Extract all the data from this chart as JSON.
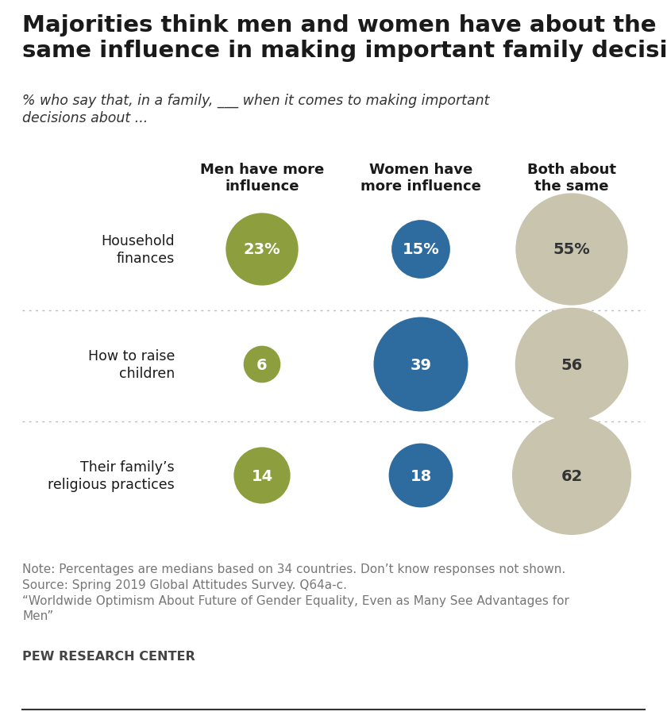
{
  "title": "Majorities think men and women have about the\nsame influence in making important family decisions",
  "subtitle": "% who say that, in a family, ___ when it comes to making important\ndecisions about ...",
  "col_headers": [
    "Men have more\ninfluence",
    "Women have\nmore influence",
    "Both about\nthe same"
  ],
  "row_labels": [
    "Household\nfinances",
    "How to raise\nchildren",
    "Their family’s\nreligious practices"
  ],
  "values": [
    [
      23,
      15,
      55
    ],
    [
      6,
      39,
      56
    ],
    [
      14,
      18,
      62
    ]
  ],
  "value_labels": [
    [
      "23%",
      "15%",
      "55%"
    ],
    [
      "6",
      "39",
      "56"
    ],
    [
      "14",
      "18",
      "62"
    ]
  ],
  "label_colors": [
    [
      "white",
      "white",
      "#333333"
    ],
    [
      "white",
      "white",
      "#333333"
    ],
    [
      "white",
      "white",
      "#333333"
    ]
  ],
  "colors": [
    "#8c9e3e",
    "#2e6b9e",
    "#c8c4ae"
  ],
  "bg_color": "#ffffff",
  "note_text": "Note: Percentages are medians based on 34 countries. Don’t know responses not shown.\nSource: Spring 2019 Global Attitudes Survey. Q64a-c.\n“Worldwide Optimism About Future of Gender Equality, Even as Many See Advantages for\nMen”",
  "source_bold": "PEW RESEARCH CENTER",
  "title_fontsize": 21,
  "subtitle_fontsize": 12.5,
  "col_header_fontsize": 13,
  "row_label_fontsize": 12.5,
  "value_fontsize": 14,
  "note_fontsize": 11,
  "max_value": 62
}
